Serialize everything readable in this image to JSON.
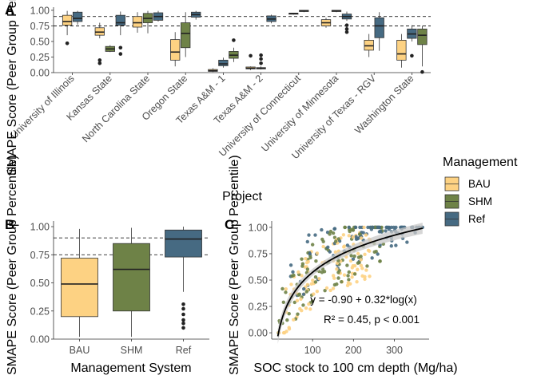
{
  "colors": {
    "BAU": "#FDD283",
    "SHM": "#6E8247",
    "Ref": "#466A82",
    "line": "#000000",
    "ribbon": "#C8C8C8"
  },
  "legend": {
    "title": "Management",
    "items": [
      {
        "key": "BAU",
        "label": "BAU"
      },
      {
        "key": "SHM",
        "label": "SHM"
      },
      {
        "key": "Ref",
        "label": "Ref"
      }
    ]
  },
  "chart_data": [
    {
      "panel": "A",
      "type": "boxplot",
      "xlabel": "Project",
      "ylabel": "SMAPE Score (Peer Group Percentile)",
      "ylim": [
        0,
        1.05
      ],
      "yticks": [
        "0.00",
        "0.25",
        "0.50",
        "0.75",
        "1.00"
      ],
      "hlines": [
        0.75,
        0.9
      ],
      "categories": [
        "University of Illinois",
        "Kansas State",
        "North Carolina State",
        "Oregon State",
        "Texas A&M - 1",
        "Texas A&M - 2",
        "University of Connecticut",
        "University of Minnesota",
        "University of Texas - RGV",
        "Washington State"
      ],
      "groups": [
        {
          "project": "University of Illinois",
          "boxes": [
            {
              "m": "BAU",
              "min": 0.6,
              "q1": 0.76,
              "med": 0.82,
              "q3": 0.92,
              "max": 0.99,
              "out": [
                0.47
              ]
            },
            {
              "m": "Ref",
              "min": 0.77,
              "q1": 0.82,
              "med": 0.87,
              "q3": 0.97,
              "max": 0.99,
              "out": []
            }
          ]
        },
        {
          "project": "Kansas State",
          "boxes": [
            {
              "m": "BAU",
              "min": 0.55,
              "q1": 0.6,
              "med": 0.65,
              "q3": 0.72,
              "max": 0.8,
              "out": [
                0.15,
                0.2
              ]
            },
            {
              "m": "SHM",
              "min": 0.33,
              "q1": 0.34,
              "med": 0.38,
              "q3": 0.42,
              "max": 0.44,
              "out": []
            },
            {
              "m": "Ref",
              "min": 0.6,
              "q1": 0.76,
              "med": 0.8,
              "q3": 0.92,
              "max": 0.98,
              "out": [
                0.3,
                0.4
              ]
            }
          ]
        },
        {
          "project": "North Carolina State",
          "boxes": [
            {
              "m": "BAU",
              "min": 0.64,
              "q1": 0.73,
              "med": 0.8,
              "q3": 0.9,
              "max": 0.97,
              "out": []
            },
            {
              "m": "SHM",
              "min": 0.63,
              "q1": 0.8,
              "med": 0.87,
              "q3": 0.95,
              "max": 0.99,
              "out": []
            },
            {
              "m": "Ref",
              "min": 0.82,
              "q1": 0.84,
              "med": 0.9,
              "q3": 0.96,
              "max": 0.99,
              "out": []
            }
          ]
        },
        {
          "project": "Oregon State",
          "boxes": [
            {
              "m": "BAU",
              "min": 0.1,
              "q1": 0.2,
              "med": 0.33,
              "q3": 0.53,
              "max": 0.65,
              "out": []
            },
            {
              "m": "SHM",
              "min": 0.25,
              "q1": 0.4,
              "med": 0.63,
              "q3": 0.8,
              "max": 0.97,
              "out": []
            },
            {
              "m": "Ref",
              "min": 0.85,
              "q1": 0.89,
              "med": 0.93,
              "q3": 0.97,
              "max": 0.99,
              "out": []
            }
          ]
        },
        {
          "project": "Texas A&M - 1",
          "boxes": [
            {
              "m": "BAU",
              "min": 0.01,
              "q1": 0.02,
              "med": 0.03,
              "q3": 0.05,
              "max": 0.07,
              "out": []
            },
            {
              "m": "Ref",
              "min": 0.08,
              "q1": 0.11,
              "med": 0.14,
              "q3": 0.2,
              "max": 0.24,
              "out": []
            },
            {
              "m": "SHM",
              "min": 0.17,
              "q1": 0.23,
              "med": 0.28,
              "q3": 0.34,
              "max": 0.4,
              "out": [
                0.52
              ]
            }
          ]
        },
        {
          "project": "Texas A&M - 2",
          "boxes": [
            {
              "m": "BAU",
              "min": 0.04,
              "q1": 0.06,
              "med": 0.07,
              "q3": 0.09,
              "max": 0.1,
              "out": [
                0.27
              ]
            },
            {
              "m": "SHM",
              "min": 0.05,
              "q1": 0.06,
              "med": 0.07,
              "q3": 0.08,
              "max": 0.1,
              "out": [
                0.15,
                0.22,
                0.28
              ]
            },
            {
              "m": "Ref",
              "min": 0.79,
              "q1": 0.82,
              "med": 0.86,
              "q3": 0.91,
              "max": 0.93,
              "out": []
            }
          ]
        },
        {
          "project": "University of Connecticut",
          "boxes": [
            {
              "m": "SHM",
              "min": 0.93,
              "q1": 0.94,
              "med": 0.95,
              "q3": 0.95,
              "max": 0.96,
              "out": []
            },
            {
              "m": "Ref",
              "min": 0.97,
              "q1": 0.98,
              "med": 0.99,
              "q3": 1.0,
              "max": 1.0,
              "out": []
            }
          ]
        },
        {
          "project": "University of Minnesota",
          "boxes": [
            {
              "m": "BAU",
              "min": 0.72,
              "q1": 0.75,
              "med": 0.8,
              "q3": 0.85,
              "max": 0.88,
              "out": []
            },
            {
              "m": "SHM",
              "min": 0.97,
              "q1": 0.98,
              "med": 0.99,
              "q3": 1.0,
              "max": 1.0,
              "out": []
            },
            {
              "m": "Ref",
              "min": 0.83,
              "q1": 0.86,
              "med": 0.9,
              "q3": 0.94,
              "max": 0.98,
              "out": [
                0.65,
                0.7,
                0.76
              ]
            }
          ]
        },
        {
          "project": "University of Texas - RGV",
          "boxes": [
            {
              "m": "BAU",
              "min": 0.25,
              "q1": 0.36,
              "med": 0.43,
              "q3": 0.52,
              "max": 0.62,
              "out": []
            },
            {
              "m": "Ref",
              "min": 0.35,
              "q1": 0.56,
              "med": 0.75,
              "q3": 0.88,
              "max": 0.97,
              "out": []
            }
          ]
        },
        {
          "project": "Washington State",
          "boxes": [
            {
              "m": "BAU",
              "min": 0.08,
              "q1": 0.2,
              "med": 0.3,
              "q3": 0.52,
              "max": 0.62,
              "out": []
            },
            {
              "m": "Ref",
              "min": 0.5,
              "q1": 0.55,
              "med": 0.62,
              "q3": 0.7,
              "max": 0.76,
              "out": [
                0.27
              ]
            },
            {
              "m": "SHM",
              "min": 0.1,
              "q1": 0.45,
              "med": 0.6,
              "q3": 0.7,
              "max": 0.75,
              "out": [
                0.01
              ]
            }
          ]
        }
      ]
    },
    {
      "panel": "B",
      "type": "boxplot",
      "xlabel": "Management System",
      "ylabel": "SMAPE Score (Peer Group Percentile)",
      "ylim": [
        0,
        1.05
      ],
      "yticks": [
        "0.00",
        "0.25",
        "0.50",
        "0.75",
        "1.00"
      ],
      "hlines": [
        0.75,
        0.9
      ],
      "categories": [
        "BAU",
        "SHM",
        "Ref"
      ],
      "boxes": [
        {
          "m": "BAU",
          "min": 0.02,
          "q1": 0.2,
          "med": 0.49,
          "q3": 0.72,
          "max": 0.98,
          "out": []
        },
        {
          "m": "SHM",
          "min": 0.02,
          "q1": 0.25,
          "med": 0.62,
          "q3": 0.85,
          "max": 0.99,
          "out": []
        },
        {
          "m": "Ref",
          "min": 0.42,
          "q1": 0.73,
          "med": 0.89,
          "q3": 0.97,
          "max": 1.0,
          "out": [
            0.1,
            0.14,
            0.17,
            0.22,
            0.27,
            0.31
          ]
        }
      ]
    },
    {
      "panel": "C",
      "type": "scatter",
      "xlabel": "SOC stock to 100 cm depth (Mg/ha)",
      "ylabel": "SMAPE Score (Peer Group Percentile)",
      "xlim": [
        0,
        385
      ],
      "ylim": [
        -0.06,
        1.06
      ],
      "xticks": [
        100,
        200,
        300
      ],
      "yticks": [
        "0.00",
        "0.25",
        "0.50",
        "0.75",
        "1.00"
      ],
      "fit": {
        "a": -0.9,
        "b": 0.32,
        "x_from": 15,
        "x_to": 370
      },
      "annotations": [
        "y = -0.90 + 0.32*log(x)",
        "R² = 0.45, p < 0.001"
      ]
    }
  ]
}
